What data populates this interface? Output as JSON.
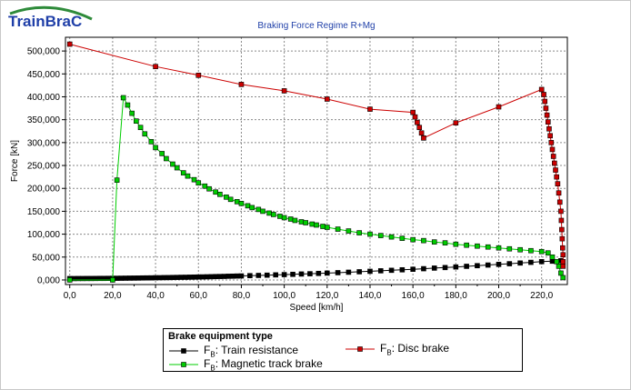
{
  "brand": {
    "logo_text_main": "TrainBra",
    "logo_text_end": "C",
    "logo_color": "#1f3fa8",
    "logo_arc_color": "#2e8b3a"
  },
  "chart_data": {
    "type": "line",
    "title": "Braking Force Regime R+Mg",
    "xlabel": "Speed [km/h]",
    "ylabel": "Force [kN]",
    "xlim": [
      -2,
      232
    ],
    "ylim": [
      -10000,
      530000
    ],
    "x_ticks": [
      0,
      20,
      40,
      60,
      80,
      100,
      120,
      140,
      160,
      180,
      200,
      220
    ],
    "x_tick_labels": [
      "0,0",
      "20,0",
      "40,0",
      "60,0",
      "80,0",
      "100,0",
      "120,0",
      "140,0",
      "160,0",
      "180,0",
      "200,0",
      "220,0"
    ],
    "y_ticks": [
      0,
      50000,
      100000,
      150000,
      200000,
      250000,
      300000,
      350000,
      400000,
      450000,
      500000
    ],
    "y_tick_labels": [
      "0,000",
      "50,000",
      "100,000",
      "150,000",
      "200,000",
      "250,000",
      "300,000",
      "350,000",
      "400,000",
      "450,000",
      "500,000"
    ],
    "grid": true,
    "legend": {
      "title": "Brake equipment type",
      "placement": "bottom"
    },
    "series": [
      {
        "name_prefix": "F",
        "name_sub": "B",
        "name_rest": ": Train resistance",
        "color": "#000000",
        "points": [
          [
            0,
            3000
          ],
          [
            2,
            3000
          ],
          [
            4,
            3100
          ],
          [
            6,
            3100
          ],
          [
            8,
            3200
          ],
          [
            10,
            3200
          ],
          [
            12,
            3300
          ],
          [
            14,
            3400
          ],
          [
            16,
            3400
          ],
          [
            18,
            3500
          ],
          [
            20,
            3600
          ],
          [
            22,
            3700
          ],
          [
            24,
            3800
          ],
          [
            26,
            3900
          ],
          [
            28,
            4000
          ],
          [
            30,
            4100
          ],
          [
            32,
            4200
          ],
          [
            34,
            4400
          ],
          [
            36,
            4500
          ],
          [
            38,
            4600
          ],
          [
            40,
            4800
          ],
          [
            42,
            4900
          ],
          [
            44,
            5100
          ],
          [
            46,
            5200
          ],
          [
            48,
            5400
          ],
          [
            50,
            5600
          ],
          [
            52,
            5800
          ],
          [
            54,
            5900
          ],
          [
            56,
            6100
          ],
          [
            58,
            6300
          ],
          [
            60,
            6500
          ],
          [
            62,
            6700
          ],
          [
            64,
            6900
          ],
          [
            66,
            7100
          ],
          [
            68,
            7400
          ],
          [
            70,
            7600
          ],
          [
            72,
            7800
          ],
          [
            74,
            8100
          ],
          [
            76,
            8300
          ],
          [
            78,
            8600
          ],
          [
            80,
            8800
          ],
          [
            84,
            9400
          ],
          [
            88,
            9900
          ],
          [
            92,
            10500
          ],
          [
            96,
            11100
          ],
          [
            100,
            11700
          ],
          [
            104,
            12300
          ],
          [
            108,
            13000
          ],
          [
            112,
            13600
          ],
          [
            116,
            14300
          ],
          [
            120,
            15000
          ],
          [
            125,
            15900
          ],
          [
            130,
            16900
          ],
          [
            135,
            17900
          ],
          [
            140,
            18900
          ],
          [
            145,
            20000
          ],
          [
            150,
            21100
          ],
          [
            155,
            22200
          ],
          [
            160,
            23400
          ],
          [
            165,
            24600
          ],
          [
            170,
            25900
          ],
          [
            175,
            27100
          ],
          [
            180,
            28400
          ],
          [
            185,
            29800
          ],
          [
            190,
            31200
          ],
          [
            195,
            32600
          ],
          [
            200,
            34000
          ],
          [
            205,
            35500
          ],
          [
            210,
            37000
          ],
          [
            215,
            38500
          ],
          [
            220,
            40000
          ],
          [
            225,
            41000
          ],
          [
            229,
            42000
          ]
        ]
      },
      {
        "name_prefix": "F",
        "name_sub": "B",
        "name_rest": ": Magnetic track brake",
        "color": "#00cc00",
        "points": [
          [
            0,
            0
          ],
          [
            20,
            0
          ],
          [
            22,
            218000
          ],
          [
            25,
            398000
          ],
          [
            27,
            382000
          ],
          [
            29,
            364000
          ],
          [
            31,
            347000
          ],
          [
            33,
            333000
          ],
          [
            35,
            319000
          ],
          [
            38,
            302000
          ],
          [
            40,
            289000
          ],
          [
            43,
            276000
          ],
          [
            45,
            265000
          ],
          [
            48,
            253000
          ],
          [
            50,
            245000
          ],
          [
            53,
            234000
          ],
          [
            55,
            227000
          ],
          [
            58,
            219000
          ],
          [
            60,
            212000
          ],
          [
            63,
            205000
          ],
          [
            65,
            199000
          ],
          [
            68,
            192000
          ],
          [
            70,
            187000
          ],
          [
            73,
            181000
          ],
          [
            75,
            176000
          ],
          [
            78,
            171000
          ],
          [
            80,
            167000
          ],
          [
            83,
            162000
          ],
          [
            85,
            158000
          ],
          [
            88,
            154000
          ],
          [
            90,
            150000
          ],
          [
            93,
            146000
          ],
          [
            95,
            143000
          ],
          [
            98,
            139000
          ],
          [
            100,
            136000
          ],
          [
            103,
            133000
          ],
          [
            105,
            130000
          ],
          [
            108,
            127000
          ],
          [
            110,
            125000
          ],
          [
            113,
            122000
          ],
          [
            115,
            120000
          ],
          [
            118,
            117000
          ],
          [
            120,
            115000
          ],
          [
            125,
            111000
          ],
          [
            130,
            107000
          ],
          [
            135,
            103000
          ],
          [
            140,
            100000
          ],
          [
            145,
            97000
          ],
          [
            150,
            94000
          ],
          [
            155,
            91000
          ],
          [
            160,
            88000
          ],
          [
            165,
            86000
          ],
          [
            170,
            83000
          ],
          [
            175,
            81000
          ],
          [
            180,
            78000
          ],
          [
            185,
            76000
          ],
          [
            190,
            74000
          ],
          [
            195,
            72000
          ],
          [
            200,
            70000
          ],
          [
            205,
            68000
          ],
          [
            210,
            66000
          ],
          [
            215,
            64000
          ],
          [
            220,
            62000
          ],
          [
            223,
            59000
          ],
          [
            225,
            50000
          ],
          [
            227,
            40000
          ],
          [
            228,
            30000
          ],
          [
            229,
            15000
          ],
          [
            230,
            5000
          ]
        ]
      },
      {
        "name_prefix": "F",
        "name_sub": "B",
        "name_rest": ": Disc brake",
        "color": "#cc0000",
        "points": [
          [
            0,
            515000
          ],
          [
            40,
            466000
          ],
          [
            60,
            447000
          ],
          [
            80,
            427000
          ],
          [
            100,
            413000
          ],
          [
            120,
            395000
          ],
          [
            140,
            373000
          ],
          [
            160,
            366000
          ],
          [
            161,
            356000
          ],
          [
            162,
            344000
          ],
          [
            163,
            333000
          ],
          [
            164,
            321000
          ],
          [
            165,
            310000
          ],
          [
            180,
            343000
          ],
          [
            200,
            378000
          ],
          [
            220,
            416000
          ],
          [
            221,
            405000
          ],
          [
            221.5,
            390000
          ],
          [
            222,
            375000
          ],
          [
            222.5,
            360000
          ],
          [
            223,
            345000
          ],
          [
            223.5,
            330000
          ],
          [
            224,
            315000
          ],
          [
            224.5,
            300000
          ],
          [
            225,
            285000
          ],
          [
            225.5,
            270000
          ],
          [
            226,
            255000
          ],
          [
            226.5,
            240000
          ],
          [
            227,
            225000
          ],
          [
            227.5,
            210000
          ],
          [
            228,
            190000
          ],
          [
            228.5,
            170000
          ],
          [
            229,
            150000
          ],
          [
            229.2,
            130000
          ],
          [
            229.4,
            110000
          ],
          [
            229.6,
            90000
          ],
          [
            229.8,
            70000
          ],
          [
            230,
            55000
          ],
          [
            230,
            40000
          ],
          [
            230,
            30000
          ]
        ]
      }
    ]
  }
}
